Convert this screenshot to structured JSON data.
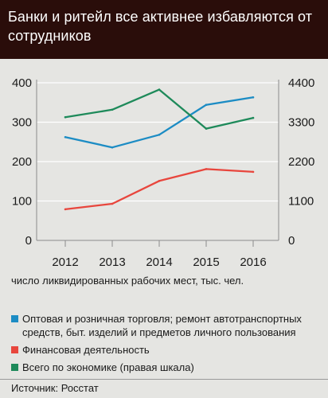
{
  "header": {
    "title": "Банки и ритейл все активнее избавляются от сотрудников"
  },
  "chart_data": {
    "type": "line",
    "x": [
      "2012",
      "2013",
      "2014",
      "2015",
      "2016"
    ],
    "y_left": {
      "ticks": [
        "0",
        "100",
        "200",
        "300",
        "400"
      ],
      "ylim": [
        0,
        400
      ]
    },
    "y_right": {
      "ticks": [
        "0",
        "1100",
        "2200",
        "3300",
        "4400"
      ],
      "ylim": [
        0,
        4400
      ]
    },
    "unit_note": "число ликвидированных рабочих мест, тыс. чел.",
    "grid": "horizontal",
    "series": [
      {
        "name": "Оптовая и розничная торговля; ремонт автотранспортных средств, быт. изделий и предметов личного пользования",
        "axis": "left",
        "color": "#1c8cc4",
        "values": [
          262,
          236,
          268,
          344,
          363
        ]
      },
      {
        "name": "Финансовая деятельность",
        "axis": "left",
        "color": "#e8463d",
        "values": [
          79,
          93,
          151,
          181,
          174
        ]
      },
      {
        "name": "Всего по экономике (правая шкала)",
        "axis": "right",
        "color": "#1e8a5a",
        "values": [
          3440,
          3650,
          4210,
          3120,
          3420
        ]
      }
    ]
  },
  "footer": {
    "source": "Источник: Росстат"
  }
}
